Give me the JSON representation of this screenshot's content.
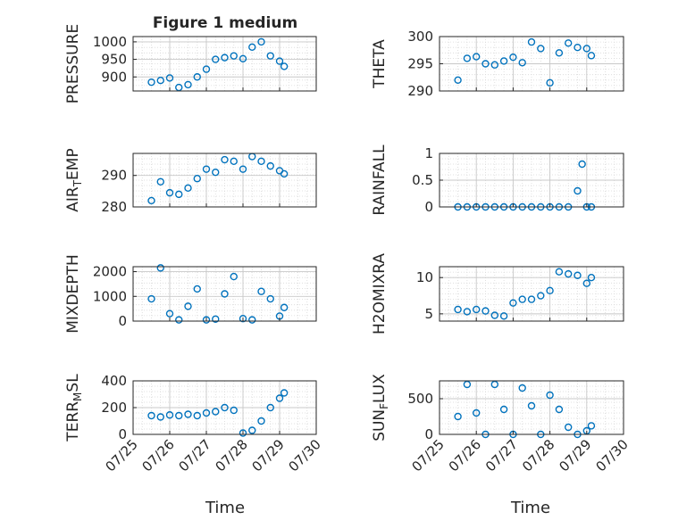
{
  "figure": {
    "title": "Figure 1 medium",
    "xlabel": "Time"
  },
  "colors": {
    "marker": "#0072BD",
    "axis": "#262626",
    "grid": "#d9d9d9",
    "background": "#ffffff"
  },
  "chart_data": [
    {
      "type": "scatter",
      "ylabel": "PRESSURE",
      "title": "Figure 1 medium",
      "ylim": [
        860,
        1015
      ],
      "yticks": [
        900,
        950,
        1000
      ],
      "x": [
        "07/25 12:00",
        "07/25 18:00",
        "07/26 00:00",
        "07/26 06:00",
        "07/26 12:00",
        "07/26 18:00",
        "07/27 00:00",
        "07/27 06:00",
        "07/27 12:00",
        "07/27 18:00",
        "07/28 00:00",
        "07/28 06:00",
        "07/28 12:00",
        "07/28 18:00",
        "07/29 00:00",
        "07/29 03:00"
      ],
      "y": [
        885,
        890,
        897,
        870,
        878,
        900,
        922,
        950,
        955,
        960,
        952,
        985,
        1000,
        960,
        945,
        930
      ],
      "grid": true,
      "minor_grid": true
    },
    {
      "type": "scatter",
      "ylabel": "THETA",
      "ylim": [
        290,
        300
      ],
      "yticks": [
        290,
        295,
        300
      ],
      "x": [
        "07/25 12:00",
        "07/25 18:00",
        "07/26 00:00",
        "07/26 06:00",
        "07/26 12:00",
        "07/26 18:00",
        "07/27 00:00",
        "07/27 06:00",
        "07/27 12:00",
        "07/27 18:00",
        "07/28 00:00",
        "07/28 06:00",
        "07/28 12:00",
        "07/28 18:00",
        "07/29 00:00",
        "07/29 03:00"
      ],
      "y": [
        292,
        296,
        296.3,
        295,
        294.8,
        295.5,
        296.2,
        295.2,
        299,
        297.8,
        291.5,
        297,
        298.8,
        298,
        297.8,
        296.5
      ],
      "grid": true,
      "minor_grid": true
    },
    {
      "type": "scatter",
      "ylabel": "AIR_TEMP",
      "ylabel_base": "AIR",
      "ylabel_sub": "T",
      "ylabel_rest": "EMP",
      "ylim": [
        280,
        297
      ],
      "yticks": [
        280,
        290
      ],
      "x": [
        "07/25 12:00",
        "07/25 18:00",
        "07/26 00:00",
        "07/26 06:00",
        "07/26 12:00",
        "07/26 18:00",
        "07/27 00:00",
        "07/27 06:00",
        "07/27 12:00",
        "07/27 18:00",
        "07/28 00:00",
        "07/28 06:00",
        "07/28 12:00",
        "07/28 18:00",
        "07/29 00:00",
        "07/29 03:00"
      ],
      "y": [
        282,
        288,
        284.5,
        284,
        286,
        289,
        292,
        291,
        295,
        294.5,
        292,
        296,
        294.5,
        293,
        291.5,
        290.5
      ],
      "grid": true,
      "minor_grid": true
    },
    {
      "type": "scatter",
      "ylabel": "RAINFALL",
      "ylim": [
        0,
        1
      ],
      "yticks": [
        0,
        0.5,
        1
      ],
      "ytick_labels": [
        "0",
        "0.5",
        "1"
      ],
      "x": [
        "07/25 12:00",
        "07/25 18:00",
        "07/26 00:00",
        "07/26 06:00",
        "07/26 12:00",
        "07/26 18:00",
        "07/27 00:00",
        "07/27 06:00",
        "07/27 12:00",
        "07/27 18:00",
        "07/28 00:00",
        "07/28 06:00",
        "07/28 12:00",
        "07/28 18:00",
        "07/28 21:00",
        "07/29 00:00",
        "07/29 03:00"
      ],
      "y": [
        0,
        0,
        0,
        0,
        0,
        0,
        0,
        0,
        0,
        0,
        0,
        0,
        0,
        0.3,
        0.8,
        0,
        0
      ],
      "grid": true,
      "minor_grid": true
    },
    {
      "type": "scatter",
      "ylabel": "MIXDEPTH",
      "ylim": [
        0,
        2200
      ],
      "yticks": [
        0,
        1000,
        2000
      ],
      "x": [
        "07/25 12:00",
        "07/25 18:00",
        "07/26 00:00",
        "07/26 06:00",
        "07/26 12:00",
        "07/26 18:00",
        "07/27 00:00",
        "07/27 06:00",
        "07/27 12:00",
        "07/27 18:00",
        "07/28 00:00",
        "07/28 06:00",
        "07/28 12:00",
        "07/28 18:00",
        "07/29 00:00",
        "07/29 03:00"
      ],
      "y": [
        900,
        2150,
        300,
        50,
        600,
        1300,
        50,
        80,
        1100,
        1800,
        100,
        50,
        1200,
        900,
        200,
        550
      ],
      "grid": true,
      "minor_grid": true
    },
    {
      "type": "scatter",
      "ylabel": "H2OMIXRA",
      "ylim": [
        4,
        11.5
      ],
      "yticks": [
        5,
        10
      ],
      "x": [
        "07/25 12:00",
        "07/25 18:00",
        "07/26 00:00",
        "07/26 06:00",
        "07/26 12:00",
        "07/26 18:00",
        "07/27 00:00",
        "07/27 06:00",
        "07/27 12:00",
        "07/27 18:00",
        "07/28 00:00",
        "07/28 06:00",
        "07/28 12:00",
        "07/28 18:00",
        "07/29 00:00",
        "07/29 03:00"
      ],
      "y": [
        5.6,
        5.3,
        5.6,
        5.4,
        4.8,
        4.7,
        6.5,
        7.0,
        7.0,
        7.5,
        8.2,
        10.8,
        10.5,
        10.3,
        9.2,
        10.0
      ],
      "grid": true,
      "minor_grid": true
    },
    {
      "type": "scatter",
      "ylabel": "TERR_MSL",
      "ylabel_base": "TERR",
      "ylabel_sub": "M",
      "ylabel_rest": "SL",
      "ylim": [
        0,
        400
      ],
      "yticks": [
        0,
        200,
        400
      ],
      "x": [
        "07/25 12:00",
        "07/25 18:00",
        "07/26 00:00",
        "07/26 06:00",
        "07/26 12:00",
        "07/26 18:00",
        "07/27 00:00",
        "07/27 06:00",
        "07/27 12:00",
        "07/27 18:00",
        "07/28 00:00",
        "07/28 06:00",
        "07/28 12:00",
        "07/28 18:00",
        "07/29 00:00",
        "07/29 03:00"
      ],
      "y": [
        140,
        130,
        145,
        140,
        150,
        140,
        160,
        170,
        200,
        180,
        10,
        30,
        100,
        200,
        270,
        310
      ],
      "grid": true,
      "minor_grid": true
    },
    {
      "type": "scatter",
      "ylabel": "SUN_FLUX",
      "ylabel_base": "SUN",
      "ylabel_sub": "F",
      "ylabel_rest": "LUX",
      "ylim": [
        0,
        750
      ],
      "yticks": [
        0,
        500
      ],
      "x": [
        "07/25 12:00",
        "07/25 18:00",
        "07/26 00:00",
        "07/26 06:00",
        "07/26 12:00",
        "07/26 18:00",
        "07/27 00:00",
        "07/27 06:00",
        "07/27 12:00",
        "07/27 18:00",
        "07/28 00:00",
        "07/28 06:00",
        "07/28 12:00",
        "07/28 18:00",
        "07/29 00:00",
        "07/29 03:00"
      ],
      "y": [
        250,
        700,
        300,
        0,
        700,
        350,
        0,
        650,
        400,
        0,
        550,
        350,
        100,
        0,
        50,
        120
      ],
      "grid": true,
      "minor_grid": true
    }
  ],
  "shared_x": {
    "type": "date",
    "xlim": [
      "07/25 00:00",
      "07/30 00:00"
    ],
    "tick_labels": [
      "07/25",
      "07/26",
      "07/27",
      "07/28",
      "07/29",
      "07/30"
    ],
    "tick_rotation_deg": 45
  }
}
